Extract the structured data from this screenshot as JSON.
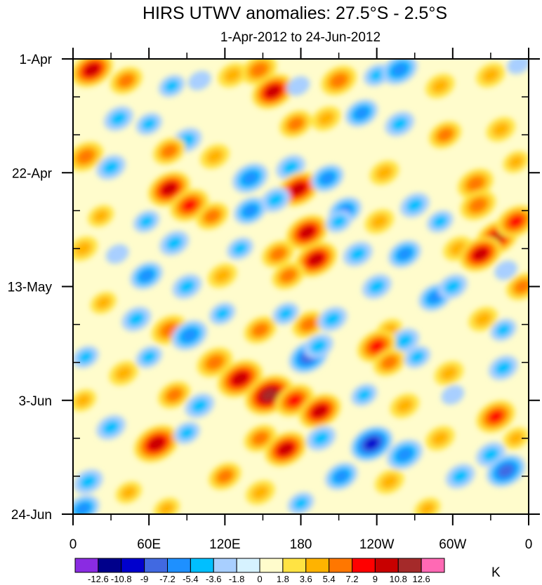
{
  "chart_data": {
    "type": "heatmap",
    "title": "HIRS UTWV anomalies: 27.5°S - 2.5°S",
    "subtitle": "1-Apr-2012 to 24-Jun-2012",
    "x_tick_labels": [
      "0",
      "60E",
      "120E",
      "180",
      "120W",
      "60W",
      "0"
    ],
    "x_tick_values_deg_east": [
      0,
      60,
      120,
      180,
      240,
      300,
      360
    ],
    "y_tick_labels": [
      "1-Apr",
      "22-Apr",
      "13-May",
      "3-Jun",
      "24-Jun"
    ],
    "y_tick_values_day": [
      0,
      21,
      42,
      63,
      84
    ],
    "xlim": [
      0,
      360
    ],
    "ylim_days": [
      0,
      84
    ],
    "colorbar": {
      "units": "K",
      "levels": [
        -12.6,
        -10.8,
        -9,
        -7.2,
        -5.4,
        -3.6,
        -1.8,
        0,
        1.8,
        3.6,
        5.4,
        7.2,
        9,
        10.8,
        12.6
      ],
      "level_labels": [
        "-12.6",
        "-10.8",
        "-9",
        "-7.2",
        "-5.4",
        "-3.6",
        "-1.8",
        "0",
        "1.8",
        "3.6",
        "5.4",
        "7.2",
        "9",
        "10.8",
        "12.6"
      ],
      "colors": [
        "#8a2be2",
        "#00008b",
        "#0000cd",
        "#4169e1",
        "#1e90ff",
        "#00bfff",
        "#a8cfff",
        "#d6f2ff",
        "#fffccc",
        "#ffe343",
        "#ffb300",
        "#ff7700",
        "#ff0000",
        "#c80000",
        "#a52a2a",
        "#ff69b4"
      ]
    },
    "anomaly_features": [
      {
        "lon": 15,
        "day": 2,
        "value": 9
      },
      {
        "lon": 42,
        "day": 4,
        "value": 6
      },
      {
        "lon": 78,
        "day": 5,
        "value": -4
      },
      {
        "lon": 100,
        "day": 4,
        "value": -3
      },
      {
        "lon": 126,
        "day": 3,
        "value": 5
      },
      {
        "lon": 147,
        "day": 2,
        "value": 7
      },
      {
        "lon": 158,
        "day": 6,
        "value": 9
      },
      {
        "lon": 178,
        "day": 5,
        "value": -3
      },
      {
        "lon": 210,
        "day": 4,
        "value": 7
      },
      {
        "lon": 240,
        "day": 3,
        "value": -4
      },
      {
        "lon": 258,
        "day": 2,
        "value": -7
      },
      {
        "lon": 290,
        "day": 5,
        "value": 5
      },
      {
        "lon": 330,
        "day": 3,
        "value": 5
      },
      {
        "lon": 352,
        "day": 1,
        "value": -3
      },
      {
        "lon": 36,
        "day": 11,
        "value": -5
      },
      {
        "lon": 60,
        "day": 12,
        "value": -4
      },
      {
        "lon": 90,
        "day": 15,
        "value": -5
      },
      {
        "lon": 176,
        "day": 12,
        "value": 6
      },
      {
        "lon": 200,
        "day": 11,
        "value": 5
      },
      {
        "lon": 228,
        "day": 10,
        "value": -6
      },
      {
        "lon": 258,
        "day": 12,
        "value": -5
      },
      {
        "lon": 294,
        "day": 14,
        "value": 6
      },
      {
        "lon": 338,
        "day": 13,
        "value": 5
      },
      {
        "lon": 10,
        "day": 18,
        "value": 7
      },
      {
        "lon": 30,
        "day": 20,
        "value": -5
      },
      {
        "lon": 76,
        "day": 17,
        "value": 6
      },
      {
        "lon": 112,
        "day": 18,
        "value": 5
      },
      {
        "lon": 140,
        "day": 22,
        "value": -7
      },
      {
        "lon": 172,
        "day": 20,
        "value": -5
      },
      {
        "lon": 178,
        "day": 24,
        "value": 9
      },
      {
        "lon": 201,
        "day": 22,
        "value": -6
      },
      {
        "lon": 246,
        "day": 21,
        "value": 5
      },
      {
        "lon": 318,
        "day": 23,
        "value": 7
      },
      {
        "lon": 350,
        "day": 19,
        "value": 4
      },
      {
        "lon": 76,
        "day": 24,
        "value": 9
      },
      {
        "lon": 92,
        "day": 27,
        "value": 8
      },
      {
        "lon": 110,
        "day": 29,
        "value": 6
      },
      {
        "lon": 58,
        "day": 30,
        "value": -4
      },
      {
        "lon": 22,
        "day": 29,
        "value": 4
      },
      {
        "lon": 140,
        "day": 28,
        "value": -6
      },
      {
        "lon": 160,
        "day": 26,
        "value": -5
      },
      {
        "lon": 215,
        "day": 28,
        "value": -6
      },
      {
        "lon": 242,
        "day": 30,
        "value": 5
      },
      {
        "lon": 270,
        "day": 27,
        "value": -5
      },
      {
        "lon": 290,
        "day": 30,
        "value": -4
      },
      {
        "lon": 320,
        "day": 27,
        "value": 7
      },
      {
        "lon": 335,
        "day": 33,
        "value": 9
      },
      {
        "lon": 350,
        "day": 30,
        "value": 8
      },
      {
        "lon": 185,
        "day": 32,
        "value": 9
      },
      {
        "lon": 210,
        "day": 30,
        "value": -4
      },
      {
        "lon": 8,
        "day": 35,
        "value": 5
      },
      {
        "lon": 35,
        "day": 36,
        "value": -3
      },
      {
        "lon": 80,
        "day": 34,
        "value": -5
      },
      {
        "lon": 132,
        "day": 35,
        "value": -4
      },
      {
        "lon": 162,
        "day": 36,
        "value": 6
      },
      {
        "lon": 192,
        "day": 37,
        "value": 9
      },
      {
        "lon": 225,
        "day": 36,
        "value": -5
      },
      {
        "lon": 262,
        "day": 36,
        "value": -6
      },
      {
        "lon": 304,
        "day": 35,
        "value": 5
      },
      {
        "lon": 322,
        "day": 36,
        "value": 9
      },
      {
        "lon": 342,
        "day": 39,
        "value": -3
      },
      {
        "lon": 58,
        "day": 40,
        "value": -6
      },
      {
        "lon": 90,
        "day": 42,
        "value": -5
      },
      {
        "lon": 118,
        "day": 40,
        "value": 5
      },
      {
        "lon": 170,
        "day": 40,
        "value": 6
      },
      {
        "lon": 240,
        "day": 42,
        "value": -5
      },
      {
        "lon": 286,
        "day": 44,
        "value": -6
      },
      {
        "lon": 300,
        "day": 42,
        "value": -5
      },
      {
        "lon": 355,
        "day": 42,
        "value": 6
      },
      {
        "lon": 24,
        "day": 45,
        "value": 4
      },
      {
        "lon": 50,
        "day": 48,
        "value": -5
      },
      {
        "lon": 76,
        "day": 50,
        "value": 7
      },
      {
        "lon": 92,
        "day": 51,
        "value": -7
      },
      {
        "lon": 118,
        "day": 47,
        "value": -4
      },
      {
        "lon": 148,
        "day": 50,
        "value": 6
      },
      {
        "lon": 168,
        "day": 47,
        "value": -4
      },
      {
        "lon": 186,
        "day": 49,
        "value": 6
      },
      {
        "lon": 205,
        "day": 48,
        "value": -5
      },
      {
        "lon": 250,
        "day": 50,
        "value": 4
      },
      {
        "lon": 262,
        "day": 52,
        "value": -5
      },
      {
        "lon": 324,
        "day": 48,
        "value": 5
      },
      {
        "lon": 340,
        "day": 50,
        "value": -4
      },
      {
        "lon": 10,
        "day": 55,
        "value": -4
      },
      {
        "lon": 40,
        "day": 58,
        "value": 5
      },
      {
        "lon": 60,
        "day": 55,
        "value": -4
      },
      {
        "lon": 112,
        "day": 56,
        "value": 7
      },
      {
        "lon": 132,
        "day": 59,
        "value": 10
      },
      {
        "lon": 155,
        "day": 62,
        "value": 11
      },
      {
        "lon": 186,
        "day": 55,
        "value": -8
      },
      {
        "lon": 194,
        "day": 53,
        "value": -5
      },
      {
        "lon": 240,
        "day": 53,
        "value": 8
      },
      {
        "lon": 250,
        "day": 56,
        "value": 6
      },
      {
        "lon": 272,
        "day": 55,
        "value": -4
      },
      {
        "lon": 297,
        "day": 58,
        "value": 5
      },
      {
        "lon": 340,
        "day": 57,
        "value": -5
      },
      {
        "lon": 8,
        "day": 63,
        "value": 4
      },
      {
        "lon": 80,
        "day": 62,
        "value": 6
      },
      {
        "lon": 100,
        "day": 64,
        "value": -5
      },
      {
        "lon": 175,
        "day": 63,
        "value": 8
      },
      {
        "lon": 195,
        "day": 65,
        "value": 9
      },
      {
        "lon": 230,
        "day": 62,
        "value": -4
      },
      {
        "lon": 262,
        "day": 64,
        "value": 5
      },
      {
        "lon": 300,
        "day": 62,
        "value": -3
      },
      {
        "lon": 334,
        "day": 66,
        "value": 8
      },
      {
        "lon": 30,
        "day": 68,
        "value": -5
      },
      {
        "lon": 66,
        "day": 71,
        "value": 10
      },
      {
        "lon": 90,
        "day": 69,
        "value": -4
      },
      {
        "lon": 148,
        "day": 70,
        "value": 6
      },
      {
        "lon": 168,
        "day": 72,
        "value": 9
      },
      {
        "lon": 196,
        "day": 70,
        "value": -5
      },
      {
        "lon": 236,
        "day": 71,
        "value": -9
      },
      {
        "lon": 262,
        "day": 73,
        "value": -7
      },
      {
        "lon": 290,
        "day": 70,
        "value": 5
      },
      {
        "lon": 330,
        "day": 73,
        "value": -5
      },
      {
        "lon": 350,
        "day": 70,
        "value": 4
      },
      {
        "lon": 12,
        "day": 78,
        "value": -5
      },
      {
        "lon": 44,
        "day": 80,
        "value": 4
      },
      {
        "lon": 120,
        "day": 77,
        "value": 6
      },
      {
        "lon": 148,
        "day": 80,
        "value": 5
      },
      {
        "lon": 212,
        "day": 77,
        "value": -6
      },
      {
        "lon": 250,
        "day": 78,
        "value": 5
      },
      {
        "lon": 306,
        "day": 77,
        "value": -5
      },
      {
        "lon": 342,
        "day": 76,
        "value": -8
      },
      {
        "lon": 8,
        "day": 83,
        "value": -6
      },
      {
        "lon": 74,
        "day": 83,
        "value": 4
      },
      {
        "lon": 180,
        "day": 82,
        "value": -4
      },
      {
        "lon": 280,
        "day": 83,
        "value": 4
      }
    ]
  }
}
